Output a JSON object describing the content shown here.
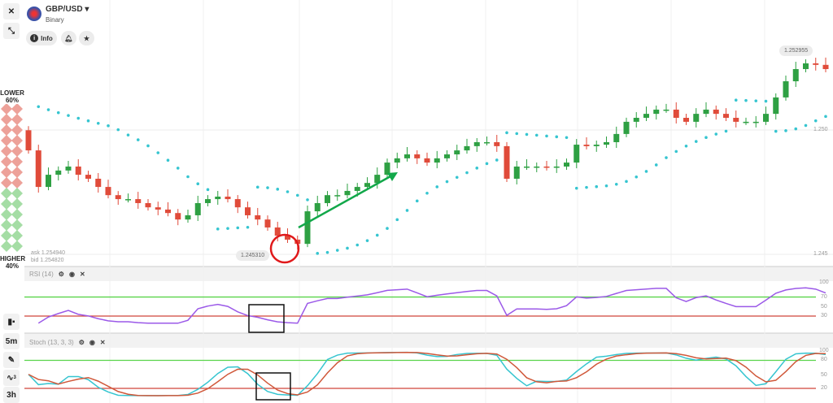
{
  "header": {
    "symbol": "GBP/USD",
    "type": "Binary",
    "info_label": "Info",
    "dropdown_icon": "caret-down-icon"
  },
  "toolbar": {
    "close_icon": "close-icon",
    "collapse_icon": "collapse-arrows-icon",
    "candle_type_icon": "candle-type-icon",
    "timeframe": "5m",
    "draw_icon": "pencil-icon",
    "indicators_icon": "indicator-wave-icon",
    "indicators_badge": "3",
    "period": "3h"
  },
  "trade": {
    "lower_label": "LOWER",
    "lower_pct": "60%",
    "higher_label": "HIGHER",
    "higher_pct": "40%"
  },
  "quote": {
    "ask": "ask 1.254940",
    "bid": "bid 1.254820"
  },
  "price_axis": {
    "label_high": "1.250",
    "label_low": "1.245",
    "current_price": "1.252955",
    "cursor_price": "1.245310"
  },
  "rsi": {
    "title": "RSI (14)",
    "levels": [
      "100",
      "70",
      "50",
      "30"
    ]
  },
  "stoch": {
    "title": "Stoch (13, 3, 3)",
    "levels": [
      "100",
      "80",
      "50",
      "20"
    ]
  },
  "colors": {
    "up": "#2ea043",
    "down": "#e04b3a",
    "psar": "#36c5d0",
    "rsi": "#9b59e8",
    "stoch_k": "#36c5d0",
    "stoch_d": "#d0583a",
    "overbought": "#5ad44a",
    "oversold": "#d0453a",
    "annotation_circle": "#e0191b",
    "annotation_arrow": "#12a84a"
  },
  "chart_data": {
    "type": "candlestick",
    "price_range": [
      1.2445,
      1.2545
    ],
    "closes": [
      1.24918,
      1.24771,
      1.2482,
      1.24837,
      1.24853,
      1.2482,
      1.24804,
      1.24771,
      1.24738,
      1.24722,
      1.24722,
      1.24706,
      1.24689,
      1.2468,
      1.24666,
      1.2464,
      1.24657,
      1.24706,
      1.24722,
      1.24732,
      1.24722,
      1.24689,
      1.24657,
      1.2464,
      1.24608,
      1.24575,
      1.24559,
      1.24542,
      1.24673,
      1.24706,
      1.24738,
      1.24738,
      1.24755,
      1.24771,
      1.24787,
      1.2482,
      1.24869,
      1.24886,
      1.24902,
      1.24886,
      1.24869,
      1.24886,
      1.24902,
      1.24918,
      1.24935,
      1.24951,
      1.24951,
      1.24935,
      1.24804,
      1.24853,
      1.24853,
      1.24853,
      1.2485,
      1.24853,
      1.24869,
      1.24941,
      1.24935,
      1.24941,
      1.24951,
      1.24984,
      1.25033,
      1.25049,
      1.25065,
      1.25082,
      1.25082,
      1.25049,
      1.25033,
      1.25065,
      1.25082,
      1.25065,
      1.25049,
      1.25033,
      1.25033,
      1.25033,
      1.25065,
      1.25131,
      1.25196,
      1.25245,
      1.25268,
      1.25262,
      1.25245
    ]
  }
}
